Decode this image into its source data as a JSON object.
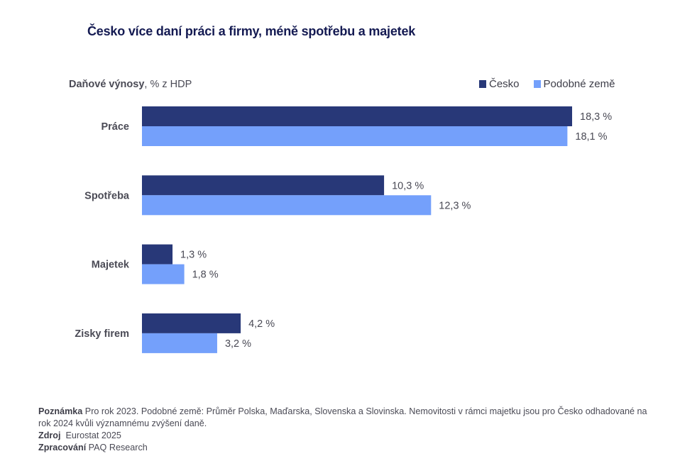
{
  "title": "Česko více daní práci a firmy, méně spotřebu a majetek",
  "subtitle_bold": "Daňové výnosy",
  "subtitle_rest": ", % z HDP",
  "colors": {
    "cesko": "#283878",
    "podobne": "#74a0fb"
  },
  "chart_data": {
    "type": "bar",
    "orientation": "horizontal",
    "title": "Česko více daní práci a firmy, méně spotřebu a majetek",
    "xlabel": "",
    "ylabel": "Daňové výnosy, % z HDP",
    "categories": [
      "Práce",
      "Spotřeba",
      "Majetek",
      "Zisky firem"
    ],
    "series": [
      {
        "name": "Česko",
        "values": [
          18.3,
          10.3,
          1.3,
          4.2
        ],
        "labels": [
          "18,3 %",
          "10,3 %",
          "1,3 %",
          "4,2 %"
        ]
      },
      {
        "name": "Podobné země",
        "values": [
          18.1,
          12.3,
          1.8,
          3.2
        ],
        "labels": [
          "18,1 %",
          "12,3 %",
          "1,8 %",
          "3,2 %"
        ]
      }
    ],
    "xlim": [
      0,
      18.3
    ],
    "grid": false,
    "legend": "top-right"
  },
  "notes": {
    "note_label": "Poznámka",
    "note_text": " Pro rok 2023. Podobné země: Průměr Polska, Maďarska, Slovenska a Slovinska. Nemovitosti v rámci majetku jsou pro Česko odhadované na rok 2024 kvůli významnému zvýšení daně.",
    "source_label": "Zdroj",
    "source_text": "  Eurostat 2025",
    "processed_label": "Zpracování",
    "processed_text": " PAQ Research"
  }
}
